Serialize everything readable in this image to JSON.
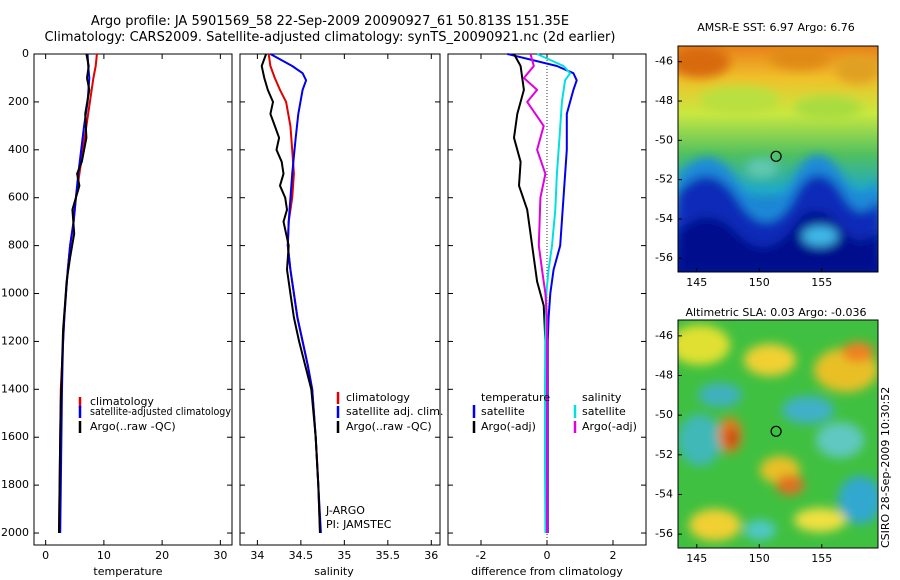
{
  "header": {
    "title_line1": "Argo profile: JA 5901569_58 22-Sep-2009 20090927_61 50.813S 151.35E",
    "title_line2": "Climatology: CARS2009. Satellite-adjusted climatology: synTS_20090921.nc (2d earlier)"
  },
  "credit": "CSIRO 28-Sep-2009 10:30:52",
  "colors": {
    "clim": "#e00000",
    "sat": "#0000ee",
    "argo": "#000000",
    "sal_sat": "#00e0e0",
    "sal_argo": "#e000e0"
  },
  "chart_data": [
    {
      "id": "temperature",
      "type": "line",
      "xlabel": "temperature",
      "ylabel": "",
      "xlim": [
        -2,
        32
      ],
      "ylim": [
        2050,
        0
      ],
      "xticks": [
        0,
        10,
        20,
        30
      ],
      "xtick_labels": [
        "0",
        "10",
        "20",
        "30"
      ],
      "yticks": [
        0,
        200,
        400,
        600,
        800,
        1000,
        1200,
        1400,
        1600,
        1800,
        2000
      ],
      "ytick_labels": [
        "0",
        "200",
        "400",
        "600",
        "800",
        "1000",
        "1200",
        "1400",
        "1600",
        "1800",
        "2000"
      ],
      "legend": [
        "climatology",
        "satellite-adjusted climatology",
        "Argo(..raw -QC)"
      ],
      "annotations": [],
      "series": [
        {
          "name": "climatology",
          "color": "#e00000",
          "x": [
            8.8,
            8.6,
            8.2,
            7.6,
            7.0,
            6.4,
            5.8,
            5.2,
            4.8,
            4.2,
            3.8,
            3.5,
            3.2,
            3.0,
            2.8,
            2.6,
            2.5,
            2.4,
            2.3
          ],
          "y": [
            0,
            50,
            100,
            200,
            300,
            400,
            500,
            600,
            700,
            800,
            900,
            1000,
            1100,
            1200,
            1300,
            1400,
            1600,
            1800,
            2000
          ]
        },
        {
          "name": "satellite-adjusted climatology",
          "color": "#0000ee",
          "x": [
            7.2,
            7.3,
            7.5,
            7.2,
            6.6,
            6.1,
            5.6,
            5.2,
            4.8,
            4.2,
            3.8,
            3.5,
            3.2,
            3.0,
            2.9,
            2.8,
            2.7,
            2.6,
            2.5
          ],
          "y": [
            0,
            50,
            100,
            200,
            300,
            400,
            500,
            600,
            700,
            800,
            900,
            1000,
            1100,
            1200,
            1300,
            1400,
            1600,
            1800,
            2000
          ]
        },
        {
          "name": "Argo(..raw -QC)",
          "color": "#000000",
          "x": [
            7.0,
            7.4,
            7.1,
            7.5,
            6.8,
            7.0,
            6.2,
            5.4,
            5.8,
            4.6,
            4.9,
            4.2,
            3.6,
            3.3,
            3.0,
            2.8,
            2.6,
            2.5,
            2.4,
            2.3
          ],
          "y": [
            0,
            50,
            100,
            150,
            250,
            350,
            450,
            500,
            550,
            650,
            750,
            850,
            950,
            1050,
            1150,
            1300,
            1450,
            1600,
            1800,
            2000
          ]
        }
      ]
    },
    {
      "id": "salinity",
      "type": "line",
      "xlabel": "salinity",
      "ylabel": "",
      "xlim": [
        33.8,
        36.1
      ],
      "ylim": [
        2050,
        0
      ],
      "xticks": [
        34,
        34.5,
        35,
        35.5,
        36
      ],
      "xtick_labels": [
        "34",
        "34.5",
        "35",
        "35.5",
        "36"
      ],
      "yticks": [],
      "ytick_labels": [],
      "legend": [
        "climatology",
        "satellite adj. clim.",
        "Argo(..raw -QC)"
      ],
      "annotations": [
        "J-ARGO",
        "PI: JAMSTEC"
      ],
      "series": [
        {
          "name": "climatology",
          "color": "#e00000",
          "x": [
            34.13,
            34.15,
            34.2,
            34.26,
            34.33,
            34.38,
            34.4,
            34.42,
            34.4,
            34.36,
            34.35,
            34.38,
            34.42,
            34.46,
            34.52,
            34.58,
            34.63,
            34.67,
            34.7,
            34.72
          ],
          "y": [
            0,
            50,
            100,
            150,
            200,
            300,
            400,
            500,
            600,
            700,
            800,
            900,
            1000,
            1100,
            1200,
            1300,
            1400,
            1600,
            1800,
            2000
          ]
        },
        {
          "name": "satellite adj. clim.",
          "color": "#0000ee",
          "x": [
            34.15,
            34.4,
            34.52,
            34.56,
            34.52,
            34.47,
            34.44,
            34.4,
            34.36,
            34.35,
            34.38,
            34.42,
            34.46,
            34.52,
            34.58,
            34.63,
            34.67,
            34.7,
            34.73
          ],
          "y": [
            0,
            50,
            80,
            110,
            150,
            250,
            350,
            500,
            700,
            800,
            900,
            1000,
            1100,
            1200,
            1300,
            1400,
            1600,
            1800,
            2000
          ]
        },
        {
          "name": "Argo(..raw -QC)",
          "color": "#000000",
          "x": [
            34.1,
            34.05,
            34.08,
            34.12,
            34.18,
            34.15,
            34.2,
            34.25,
            34.22,
            34.28,
            34.3,
            34.26,
            34.32,
            34.34,
            34.3,
            34.33,
            34.36,
            34.34,
            34.38,
            34.42,
            34.48,
            34.55,
            34.62,
            34.67,
            34.7,
            34.72
          ],
          "y": [
            0,
            50,
            100,
            150,
            200,
            250,
            300,
            350,
            400,
            450,
            500,
            550,
            600,
            650,
            700,
            750,
            800,
            900,
            1000,
            1100,
            1200,
            1300,
            1400,
            1600,
            1800,
            2000
          ]
        }
      ]
    },
    {
      "id": "difference",
      "type": "line",
      "xlabel": "difference from climatology",
      "ylabel": "",
      "xlim": [
        -3,
        3
      ],
      "ylim": [
        2050,
        0
      ],
      "xticks": [
        -2,
        0,
        2
      ],
      "xtick_labels": [
        "-2",
        "0",
        "2"
      ],
      "yticks": [],
      "ytick_labels": [],
      "legend": [
        "temperature",
        "satellite",
        "Argo(-adj)",
        "salinity",
        "satellite",
        "Argo(-adj)"
      ],
      "annotations": [],
      "series": [
        {
          "name": "temperature satellite",
          "color": "#0000ee",
          "x": [
            -1.2,
            0.3,
            0.8,
            0.9,
            0.8,
            0.6,
            0.6,
            0.5,
            0.4,
            0.2,
            0.1,
            0.05,
            0.02,
            0.02,
            0.02,
            0.02
          ],
          "y": [
            0,
            50,
            80,
            110,
            150,
            250,
            400,
            600,
            800,
            900,
            1000,
            1100,
            1200,
            1400,
            1700,
            2000
          ]
        },
        {
          "name": "temperature Argo(-adj)",
          "color": "#000000",
          "x": [
            -1.0,
            -0.8,
            -0.7,
            -0.9,
            -1.0,
            -0.8,
            -0.85,
            -0.6,
            -0.5,
            -0.4,
            -0.3,
            -0.1,
            -0.05,
            -0.05,
            -0.05,
            -0.04
          ],
          "y": [
            0,
            50,
            150,
            250,
            350,
            450,
            550,
            650,
            750,
            850,
            950,
            1050,
            1200,
            1400,
            1700,
            2000
          ]
        },
        {
          "name": "salinity satellite",
          "color": "#00e0e0",
          "x": [
            -0.3,
            0.5,
            0.7,
            0.55,
            0.45,
            0.38,
            0.3,
            0.25,
            0.15,
            0.05,
            -0.02,
            -0.05,
            -0.06,
            -0.06,
            -0.05
          ],
          "y": [
            0,
            50,
            80,
            110,
            200,
            350,
            500,
            650,
            800,
            900,
            1000,
            1200,
            1400,
            1700,
            2000
          ]
        },
        {
          "name": "salinity Argo(-adj)",
          "color": "#e000e0",
          "x": [
            -0.5,
            -0.4,
            -0.7,
            -0.3,
            -0.6,
            -0.1,
            -0.3,
            -0.05,
            -0.2,
            -0.25,
            -0.15,
            -0.05,
            0.0,
            0.0,
            0.0
          ],
          "y": [
            0,
            50,
            100,
            150,
            200,
            300,
            400,
            500,
            600,
            800,
            900,
            1000,
            1100,
            1400,
            2000
          ]
        }
      ]
    },
    {
      "id": "sst-map",
      "type": "heatmap",
      "title": "AMSR-E SST: 6.97 Argo: 6.76",
      "xticks": [
        145,
        150,
        155
      ],
      "xtick_labels": [
        "145",
        "150",
        "155"
      ],
      "yticks": [
        -46,
        -48,
        -50,
        -52,
        -54,
        -56
      ],
      "ytick_labels": [
        "-46",
        "-48",
        "-50",
        "-52",
        "-54",
        "-56"
      ],
      "xlim": [
        143.5,
        159.5
      ],
      "ylim": [
        -56.7,
        -45.2
      ],
      "marker": {
        "lon": 151.35,
        "lat": -50.813
      }
    },
    {
      "id": "sla-map",
      "type": "heatmap",
      "title": "Altimetric SLA: 0.03 Argo: -0.036",
      "xticks": [
        145,
        150,
        155
      ],
      "xtick_labels": [
        "145",
        "150",
        "155"
      ],
      "yticks": [
        -46,
        -48,
        -50,
        -52,
        -54,
        -56
      ],
      "ytick_labels": [
        "-46",
        "-48",
        "-50",
        "-52",
        "-54",
        "-56"
      ],
      "xlim": [
        143.5,
        159.5
      ],
      "ylim": [
        -56.7,
        -45.2
      ],
      "marker": {
        "lon": 151.35,
        "lat": -50.813
      }
    }
  ]
}
